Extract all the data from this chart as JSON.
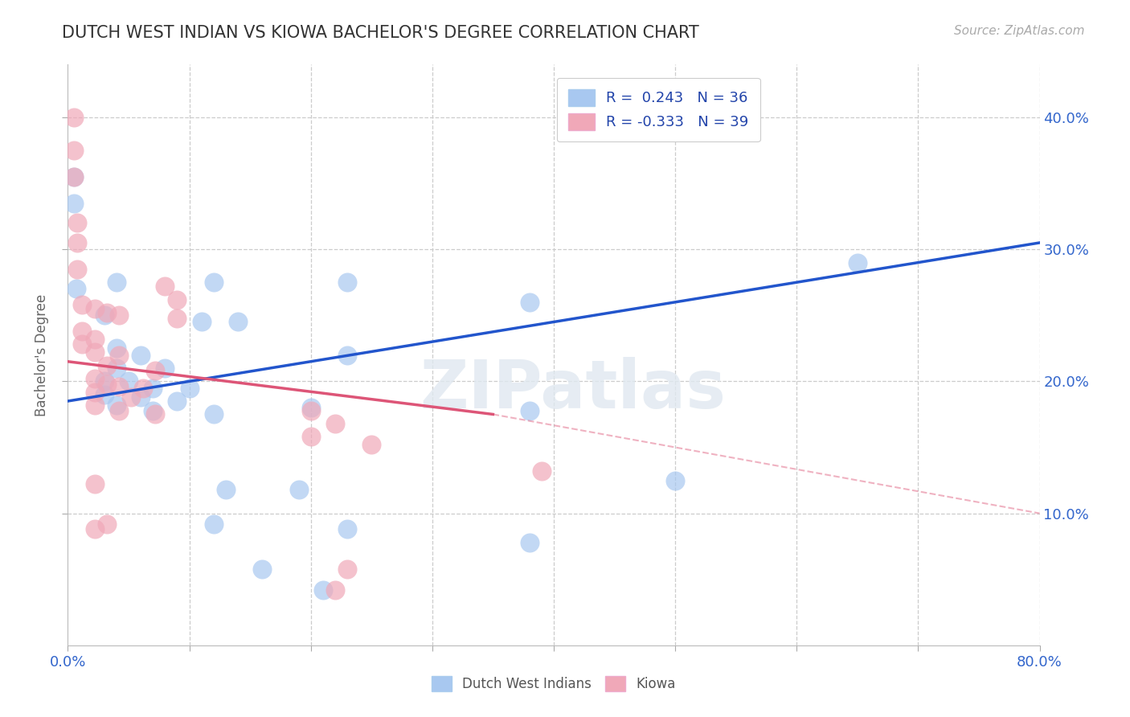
{
  "title": "DUTCH WEST INDIAN VS KIOWA BACHELOR'S DEGREE CORRELATION CHART",
  "source_text": "Source: ZipAtlas.com",
  "ylabel": "Bachelor's Degree",
  "xlim": [
    0.0,
    0.8
  ],
  "ylim": [
    0.0,
    0.44
  ],
  "xticks": [
    0.0,
    0.1,
    0.2,
    0.3,
    0.4,
    0.5,
    0.6,
    0.7,
    0.8
  ],
  "xtick_labels_shown": {
    "0.0": "0.0%",
    "0.80": "80.0%"
  },
  "yticks": [
    0.1,
    0.2,
    0.3,
    0.4
  ],
  "ytick_labels": [
    "10.0%",
    "20.0%",
    "30.0%",
    "40.0%"
  ],
  "blue_R": 0.243,
  "blue_N": 36,
  "pink_R": -0.333,
  "pink_N": 39,
  "blue_color": "#a8c8f0",
  "pink_color": "#f0a8b8",
  "blue_line_color": "#2255cc",
  "pink_line_color": "#dd5577",
  "legend_label_blue": "Dutch West Indians",
  "legend_label_pink": "Kiowa",
  "watermark": "ZIPatlas",
  "blue_line": {
    "x0": 0.0,
    "y0": 0.185,
    "x1": 0.8,
    "y1": 0.305
  },
  "pink_line_solid": {
    "x0": 0.0,
    "y0": 0.215,
    "x1": 0.35,
    "y1": 0.175
  },
  "pink_line_dash": {
    "x0": 0.35,
    "y0": 0.175,
    "x1": 0.8,
    "y1": 0.1
  },
  "blue_points": [
    [
      0.005,
      0.355
    ],
    [
      0.005,
      0.335
    ],
    [
      0.007,
      0.27
    ],
    [
      0.04,
      0.275
    ],
    [
      0.12,
      0.275
    ],
    [
      0.23,
      0.275
    ],
    [
      0.38,
      0.26
    ],
    [
      0.65,
      0.29
    ],
    [
      0.03,
      0.25
    ],
    [
      0.11,
      0.245
    ],
    [
      0.14,
      0.245
    ],
    [
      0.04,
      0.225
    ],
    [
      0.06,
      0.22
    ],
    [
      0.23,
      0.22
    ],
    [
      0.04,
      0.21
    ],
    [
      0.08,
      0.21
    ],
    [
      0.03,
      0.2
    ],
    [
      0.05,
      0.2
    ],
    [
      0.07,
      0.195
    ],
    [
      0.1,
      0.195
    ],
    [
      0.03,
      0.19
    ],
    [
      0.06,
      0.188
    ],
    [
      0.09,
      0.185
    ],
    [
      0.04,
      0.182
    ],
    [
      0.07,
      0.178
    ],
    [
      0.12,
      0.175
    ],
    [
      0.2,
      0.18
    ],
    [
      0.38,
      0.178
    ],
    [
      0.5,
      0.125
    ],
    [
      0.13,
      0.118
    ],
    [
      0.19,
      0.118
    ],
    [
      0.12,
      0.092
    ],
    [
      0.23,
      0.088
    ],
    [
      0.38,
      0.078
    ],
    [
      0.16,
      0.058
    ],
    [
      0.21,
      0.042
    ]
  ],
  "pink_points": [
    [
      0.005,
      0.4
    ],
    [
      0.005,
      0.375
    ],
    [
      0.005,
      0.355
    ],
    [
      0.008,
      0.32
    ],
    [
      0.008,
      0.305
    ],
    [
      0.008,
      0.285
    ],
    [
      0.08,
      0.272
    ],
    [
      0.09,
      0.262
    ],
    [
      0.012,
      0.258
    ],
    [
      0.022,
      0.255
    ],
    [
      0.032,
      0.252
    ],
    [
      0.042,
      0.25
    ],
    [
      0.09,
      0.248
    ],
    [
      0.012,
      0.238
    ],
    [
      0.022,
      0.232
    ],
    [
      0.012,
      0.228
    ],
    [
      0.022,
      0.222
    ],
    [
      0.042,
      0.22
    ],
    [
      0.032,
      0.212
    ],
    [
      0.072,
      0.208
    ],
    [
      0.022,
      0.202
    ],
    [
      0.032,
      0.198
    ],
    [
      0.042,
      0.196
    ],
    [
      0.062,
      0.195
    ],
    [
      0.022,
      0.192
    ],
    [
      0.052,
      0.188
    ],
    [
      0.022,
      0.182
    ],
    [
      0.042,
      0.178
    ],
    [
      0.072,
      0.175
    ],
    [
      0.2,
      0.178
    ],
    [
      0.22,
      0.168
    ],
    [
      0.2,
      0.158
    ],
    [
      0.25,
      0.152
    ],
    [
      0.39,
      0.132
    ],
    [
      0.022,
      0.122
    ],
    [
      0.032,
      0.092
    ],
    [
      0.022,
      0.088
    ],
    [
      0.23,
      0.058
    ],
    [
      0.22,
      0.042
    ]
  ]
}
